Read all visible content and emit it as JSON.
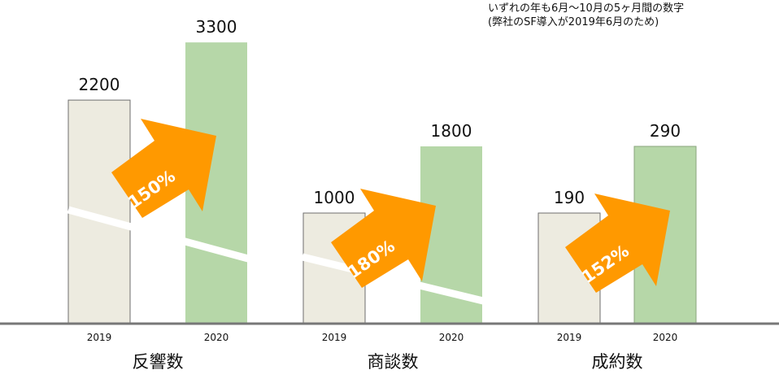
{
  "note": [
    "いずれの年も6月〜10月の5ヶ月間の数字",
    "(弊社のSF導入が2019年6月のため)"
  ],
  "chart_data": {
    "type": "bar",
    "categories": [
      "反響数",
      "商談数",
      "成約数"
    ],
    "series_years": [
      "2019",
      "2020"
    ],
    "groups": [
      {
        "label": "反響数",
        "values": [
          2200,
          3300
        ],
        "growth": "150%",
        "axis_break": true
      },
      {
        "label": "商談数",
        "values": [
          1000,
          1800
        ],
        "growth": "180%",
        "axis_break": true
      },
      {
        "label": "成約数",
        "values": [
          190,
          290
        ],
        "growth": "152%",
        "axis_break": false
      }
    ],
    "colors": {
      "2019": "#edebe0",
      "2020": "#b6d7a8",
      "arrow": "#ff9900",
      "baseline": "#777777"
    }
  }
}
